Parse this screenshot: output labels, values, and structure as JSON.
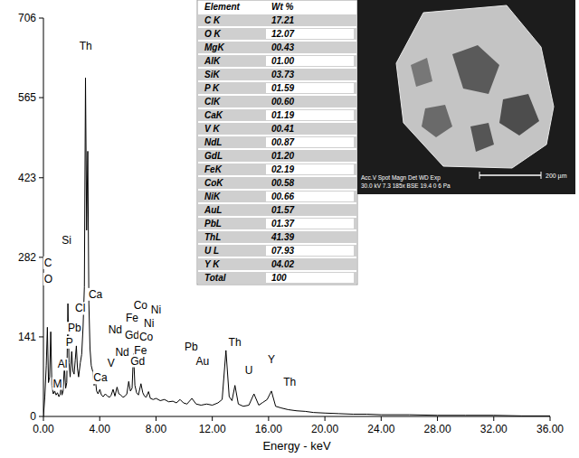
{
  "chart_data": {
    "type": "line",
    "color": "#000000",
    "grid": false,
    "x_label": "Energy - keV",
    "xlim": [
      0,
      36
    ],
    "ylim": [
      0,
      706
    ],
    "xticks": [
      {
        "value": 0,
        "label": "0.00"
      },
      {
        "value": 4,
        "label": "4.00"
      },
      {
        "value": 8,
        "label": "8.00"
      },
      {
        "value": 12,
        "label": "12.00"
      },
      {
        "value": 16,
        "label": "16.00"
      },
      {
        "value": 20,
        "label": "20.00"
      },
      {
        "value": 24,
        "label": "24.00"
      },
      {
        "value": 28,
        "label": "28.00"
      },
      {
        "value": 32,
        "label": "32.00"
      },
      {
        "value": 36,
        "label": "36.00"
      }
    ],
    "yticks": [
      0,
      141,
      282,
      423,
      565,
      706
    ],
    "x": [
      0.0,
      0.1,
      0.2,
      0.28,
      0.36,
      0.44,
      0.52,
      0.6,
      0.7,
      0.8,
      0.9,
      1.0,
      1.1,
      1.2,
      1.25,
      1.32,
      1.4,
      1.49,
      1.58,
      1.66,
      1.74,
      1.82,
      1.9,
      2.01,
      2.1,
      2.18,
      2.26,
      2.34,
      2.42,
      2.5,
      2.62,
      2.72,
      2.82,
      2.91,
      2.99,
      3.07,
      3.15,
      3.23,
      3.31,
      3.4,
      3.5,
      3.6,
      3.69,
      3.78,
      3.88,
      4.01,
      4.12,
      4.25,
      4.4,
      4.55,
      4.7,
      4.82,
      4.95,
      5.08,
      5.23,
      5.36,
      5.5,
      5.65,
      5.8,
      5.93,
      6.06,
      6.18,
      6.3,
      6.4,
      6.5,
      6.62,
      6.75,
      6.93,
      7.06,
      7.18,
      7.3,
      7.47,
      7.6,
      7.8,
      8.0,
      8.3,
      8.6,
      8.9,
      9.2,
      9.45,
      9.71,
      9.95,
      10.2,
      10.55,
      10.85,
      11.2,
      11.6,
      12.0,
      12.4,
      12.7,
      12.97,
      13.2,
      13.4,
      13.61,
      13.85,
      14.2,
      14.6,
      14.96,
      15.3,
      15.6,
      15.9,
      16.2,
      16.5,
      16.9,
      17.4,
      18.0,
      18.6,
      19.2,
      20.0,
      21.0,
      22.0,
      23.0,
      24.0,
      26.0,
      28.0,
      30.0,
      32.0,
      34.0,
      36.0
    ],
    "values": [
      0,
      35,
      90,
      158,
      60,
      70,
      150,
      55,
      40,
      45,
      38,
      42,
      35,
      40,
      55,
      38,
      45,
      90,
      50,
      60,
      200,
      95,
      70,
      115,
      80,
      75,
      100,
      125,
      85,
      70,
      95,
      110,
      160,
      230,
      600,
      330,
      470,
      200,
      120,
      90,
      80,
      55,
      65,
      45,
      40,
      48,
      38,
      35,
      40,
      36,
      34,
      38,
      48,
      36,
      52,
      40,
      38,
      34,
      36,
      40,
      62,
      45,
      50,
      112,
      55,
      42,
      38,
      58,
      42,
      36,
      34,
      44,
      32,
      30,
      32,
      28,
      30,
      26,
      27,
      24,
      30,
      24,
      22,
      32,
      22,
      20,
      22,
      20,
      24,
      30,
      117,
      35,
      28,
      55,
      22,
      18,
      20,
      40,
      20,
      25,
      30,
      45,
      18,
      15,
      12,
      10,
      9,
      7,
      6,
      5,
      4,
      4,
      3,
      3,
      2,
      2,
      2,
      1,
      1
    ],
    "annotations": [
      {
        "text": "C",
        "x": 0.05,
        "y": 266
      },
      {
        "text": "O",
        "x": 0.05,
        "y": 237
      },
      {
        "text": "Si",
        "x": 1.3,
        "y": 306
      },
      {
        "text": "Th",
        "x": 3.0,
        "y": 650
      },
      {
        "text": "Ca",
        "x": 3.7,
        "y": 210
      },
      {
        "text": "Cl",
        "x": 2.62,
        "y": 185
      },
      {
        "text": "Pb",
        "x": 2.2,
        "y": 150
      },
      {
        "text": "P",
        "x": 1.85,
        "y": 125
      },
      {
        "text": "Al",
        "x": 1.35,
        "y": 86
      },
      {
        "text": "M",
        "x": 1.0,
        "y": 52
      },
      {
        "text": "Ca",
        "x": 4.05,
        "y": 62
      },
      {
        "text": "V",
        "x": 4.8,
        "y": 88
      },
      {
        "text": "Nd",
        "x": 5.6,
        "y": 108
      },
      {
        "text": "Nd",
        "x": 5.1,
        "y": 148
      },
      {
        "text": "Gd",
        "x": 6.3,
        "y": 138
      },
      {
        "text": "Fe",
        "x": 6.3,
        "y": 168
      },
      {
        "text": "Co",
        "x": 6.9,
        "y": 190
      },
      {
        "text": "Ni",
        "x": 8.0,
        "y": 183
      },
      {
        "text": "Ni",
        "x": 7.5,
        "y": 158
      },
      {
        "text": "Co",
        "x": 7.3,
        "y": 135
      },
      {
        "text": "Fe",
        "x": 6.9,
        "y": 110
      },
      {
        "text": "Gd",
        "x": 6.7,
        "y": 92
      },
      {
        "text": "Pb",
        "x": 10.5,
        "y": 117
      },
      {
        "text": "Au",
        "x": 11.3,
        "y": 91
      },
      {
        "text": "Th",
        "x": 13.6,
        "y": 125
      },
      {
        "text": "U",
        "x": 14.6,
        "y": 75
      },
      {
        "text": "Y",
        "x": 16.2,
        "y": 95
      },
      {
        "text": "Th",
        "x": 17.5,
        "y": 55
      }
    ]
  },
  "table": {
    "header": [
      "Element",
      "Wt %"
    ],
    "rows": [
      [
        "C K",
        "17.21"
      ],
      [
        "O K",
        "12.07"
      ],
      [
        "MgK",
        "00.43"
      ],
      [
        "AlK",
        "01.00"
      ],
      [
        "SiK",
        "03.73"
      ],
      [
        "P K",
        "01.59"
      ],
      [
        "ClK",
        "00.60"
      ],
      [
        "CaK",
        "01.19"
      ],
      [
        "V K",
        "00.41"
      ],
      [
        "NdL",
        "00.87"
      ],
      [
        "GdL",
        "01.20"
      ],
      [
        "FeK",
        "02.19"
      ],
      [
        "CoK",
        "00.58"
      ],
      [
        "NiK",
        "00.66"
      ],
      [
        "AuL",
        "01.57"
      ],
      [
        "PbL",
        "01.37"
      ],
      [
        "ThL",
        "41.39"
      ],
      [
        "U L",
        "07.93"
      ],
      [
        "Y K",
        "04.02"
      ],
      [
        "Total",
        "100"
      ]
    ]
  },
  "micrograph": {
    "caption": [
      "Acc.V Spot Magn Det WD Exp",
      "30.0 kV 7.3 185x BSE 19.4 0 6 Pa"
    ],
    "scale_bar": "200 µm"
  }
}
